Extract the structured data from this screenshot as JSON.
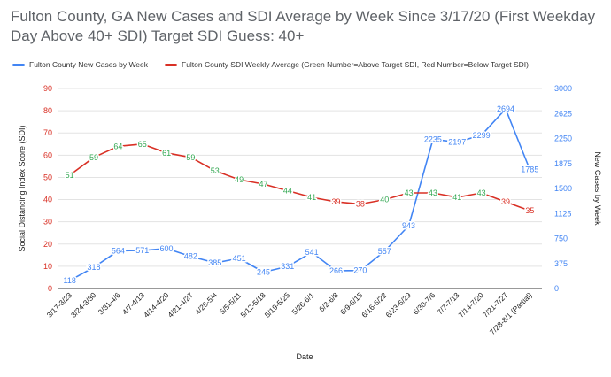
{
  "chart_data": {
    "type": "line",
    "title": "Fulton County, GA New Cases and SDI Average by Week Since 3/17/20 (First Weekday Day Above 40+ SDI) Target SDI Guess: 40+",
    "xlabel": "Date",
    "ylabel_left": "Social Distancing Index Score (SDI)",
    "ylabel_right": "New Cases by Week",
    "categories": [
      "3/17-3/23",
      "3/24-3/30",
      "3/31-4/6",
      "4/7-4/13",
      "4/14-4/20",
      "4/21-4/27",
      "4/28-5/4",
      "5/5-5/11",
      "5/12-5/18",
      "5/19-5/25",
      "5/26-6/1",
      "6/2-6/8",
      "6/9-6/15",
      "6/16-6/22",
      "6/23-6/29",
      "6/30-7/6",
      "7/7-7/13",
      "7/14-7/20",
      "7/21-7/27",
      "7/28-8/1 (Partial)"
    ],
    "left_axis": {
      "min": 0,
      "max": 90,
      "ticks": [
        0,
        10,
        20,
        30,
        40,
        50,
        60,
        70,
        80,
        90
      ],
      "color": "#d93025"
    },
    "right_axis": {
      "min": 0,
      "max": 3000,
      "ticks": [
        0,
        375,
        750,
        1125,
        1500,
        1875,
        2250,
        2625,
        3000
      ],
      "color": "#4285f4"
    },
    "target_sdi": 40,
    "legend_position": "top-left",
    "grid": true,
    "series": [
      {
        "name": "Fulton County New Cases by Week",
        "axis": "right",
        "color": "#4285f4",
        "values": [
          118,
          318,
          564,
          571,
          600,
          482,
          385,
          451,
          245,
          331,
          541,
          266,
          270,
          557,
          943,
          2235,
          2197,
          2299,
          2694,
          1785
        ]
      },
      {
        "name": "Fulton County SDI Weekly Average (Green Number=Above Target SDI, Red Number=Below Target SDI)",
        "axis": "left",
        "color": "#d93025",
        "values": [
          51,
          59,
          64,
          65,
          61,
          59,
          53,
          49,
          47,
          44,
          41,
          39,
          38,
          40,
          43,
          43,
          41,
          43,
          39,
          35
        ]
      }
    ],
    "above_color": "#34a853",
    "below_color": "#d93025"
  }
}
